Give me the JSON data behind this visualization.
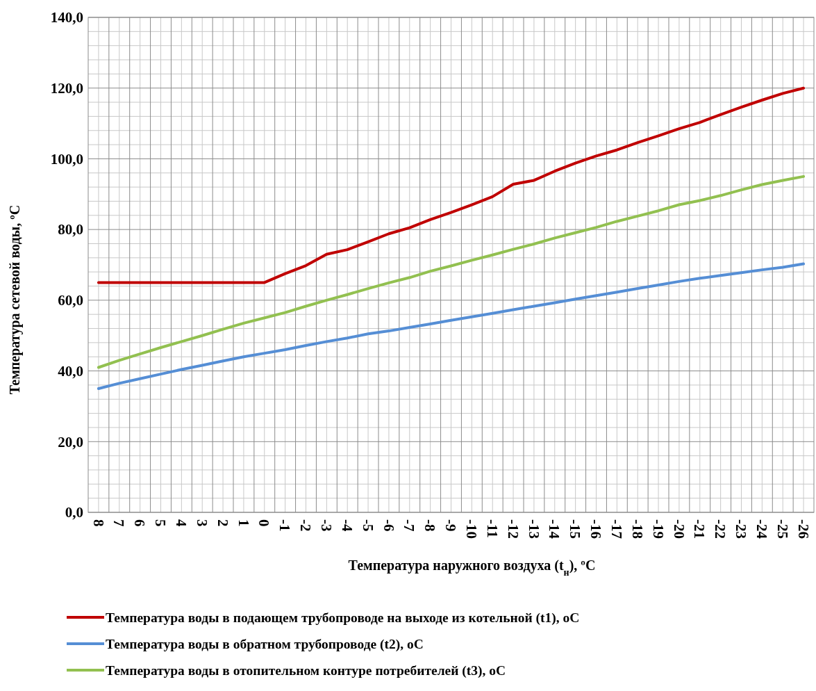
{
  "chart_data": {
    "type": "line",
    "xlabel": "Температура наружного воздуха (t$_{н}$), ºC",
    "ylabel": "Температура сетевой воды, ºC",
    "categories": [
      "8",
      "7",
      "6",
      "5",
      "4",
      "3",
      "2",
      "1",
      "0",
      "-1",
      "-2",
      "-3",
      "-4",
      "-5",
      "-6",
      "-7",
      "-8",
      "-9",
      "-10",
      "-11",
      "-12",
      "-13",
      "-14",
      "-15",
      "-16",
      "-17",
      "-18",
      "-19",
      "-20",
      "-21",
      "-22",
      "-23",
      "-24",
      "-25",
      "-26"
    ],
    "ylim": [
      0,
      140
    ],
    "yticks": [
      {
        "value": 0,
        "label": "0,0"
      },
      {
        "value": 20,
        "label": "20,0"
      },
      {
        "value": 40,
        "label": "40,0"
      },
      {
        "value": 60,
        "label": "60,0"
      },
      {
        "value": 80,
        "label": "80,0"
      },
      {
        "value": 100,
        "label": "100,0"
      },
      {
        "value": 120,
        "label": "120,0"
      },
      {
        "value": 140,
        "label": "140,0"
      }
    ],
    "grid": true,
    "legend": "bottom",
    "marker": "none",
    "line_style": "solid",
    "series": [
      {
        "name": "Температура воды в подающем трубопроводе на выходе из котельной (t1), oC",
        "color": "#c00000",
        "values": [
          65,
          65,
          65,
          65,
          65,
          65,
          65,
          65,
          65,
          67.5,
          69.8,
          73,
          74.3,
          76.5,
          78.8,
          80.5,
          82.8,
          84.8,
          87,
          89.3,
          92.8,
          93.9,
          96.5,
          98.8,
          100.8,
          102.5,
          104.6,
          106.5,
          108.5,
          110.3,
          112.5,
          114.6,
          116.6,
          118.5,
          120
        ]
      },
      {
        "name": "Температура воды в обратном трубопроводе (t2), oC",
        "color": "#558ed5",
        "values": [
          35,
          36.5,
          37.8,
          39.1,
          40.4,
          41.6,
          42.8,
          44,
          45,
          46,
          47.2,
          48.3,
          49.3,
          50.5,
          51.3,
          52.3,
          53.3,
          54.3,
          55.3,
          56.3,
          57.3,
          58.3,
          59.3,
          60.3,
          61.3,
          62.3,
          63.3,
          64.3,
          65.3,
          66.2,
          67,
          67.8,
          68.6,
          69.3,
          70.3
        ]
      },
      {
        "name": "Температура воды в отопительном контуре потребителей (t3), oC",
        "color": "#92c050",
        "values": [
          41,
          43,
          44.8,
          46.6,
          48.3,
          50,
          51.8,
          53.5,
          55,
          56.5,
          58.3,
          60,
          61.6,
          63.3,
          64.9,
          66.4,
          68.2,
          69.7,
          71.3,
          72.8,
          74.4,
          75.9,
          77.6,
          79.1,
          80.6,
          82.3,
          83.8,
          85.3,
          87,
          88.2,
          89.6,
          91.2,
          92.7,
          93.9,
          95
        ]
      }
    ]
  }
}
